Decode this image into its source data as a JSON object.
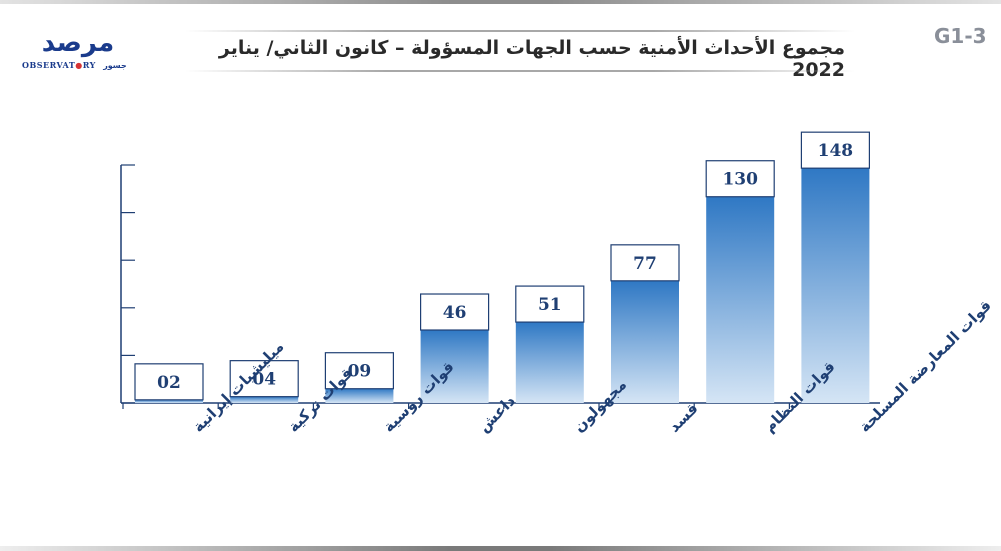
{
  "header": {
    "title": "مجموع الأحداث الأمنية حسب الجهات المسؤولة – كانون الثاني/ يناير 2022",
    "figure_code": "G1-3",
    "logo": {
      "arabic_text": "مرصد",
      "english_text_left": "OBSERVAT",
      "english_text_right": "RY",
      "subtext": "جسور"
    }
  },
  "colors": {
    "bar_top": "#2f78c4",
    "bar_bottom": "#d5e5f5",
    "label_border": "#1f3f73",
    "label_text": "#1f3f73",
    "axis": "#1f3f73",
    "category_text": "#1f3f73"
  },
  "chart_data": {
    "type": "bar",
    "categories": [
      "ميليشيات إيرانية",
      "قوات تركية",
      "قوات روسية",
      "داعش",
      "مجهولون",
      "قسد",
      "قوات النظام",
      "قوات المعارضة المسلحة"
    ],
    "value_labels": [
      "02",
      "04",
      "09",
      "46",
      "51",
      "77",
      "130",
      "148"
    ],
    "values": [
      2,
      4,
      9,
      46,
      51,
      77,
      130,
      148
    ],
    "ylim": [
      0,
      150
    ],
    "yticks": [
      0,
      30,
      60,
      90,
      120,
      150
    ],
    "grid": false,
    "legend": "none"
  }
}
